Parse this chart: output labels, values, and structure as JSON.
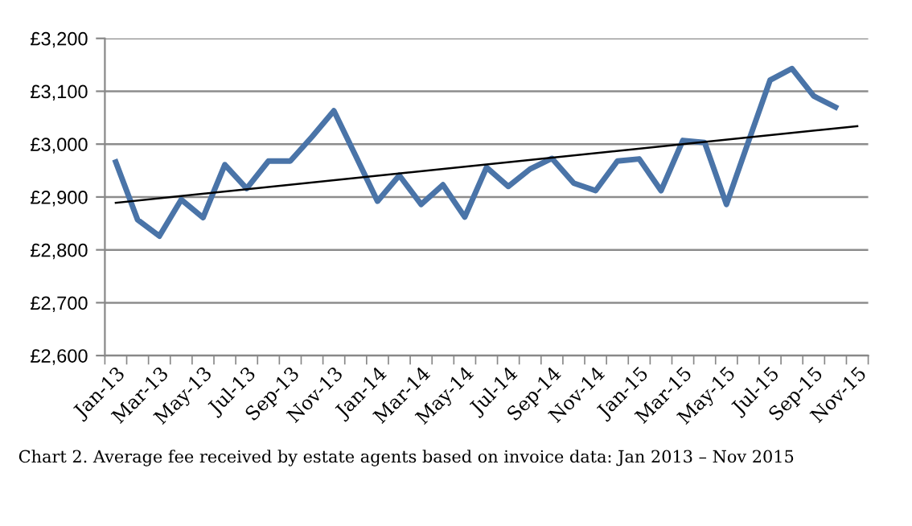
{
  "chart_data": {
    "type": "line",
    "categories": [
      "Jan-13",
      null,
      "Mar-13",
      null,
      "May-13",
      null,
      "Jul-13",
      null,
      "Sep-13",
      null,
      "Nov-13",
      null,
      "Jan-14",
      null,
      "Mar-14",
      null,
      "May-14",
      null,
      "Jul-14",
      null,
      "Sep-14",
      null,
      "Nov-14",
      null,
      "Jan-15",
      null,
      "Mar-15",
      null,
      "May-15",
      null,
      "Jul-15",
      null,
      "Sep-15",
      null,
      "Nov-15"
    ],
    "series": [
      {
        "color": "#4a74a8",
        "values": [
          2966,
          2857,
          2826,
          2895,
          2861,
          2961,
          2916,
          2968,
          2968,
          3014,
          3063,
          2978,
          2892,
          2941,
          2886,
          2923,
          2862,
          2956,
          2920,
          2953,
          2973,
          2926,
          2912,
          2968,
          2972,
          2912,
          3007,
          3003,
          2886,
          3004,
          3121,
          3143,
          3091,
          3070,
          null
        ]
      },
      {
        "color": "#000000",
        "values": [
          2889,
          null,
          null,
          null,
          null,
          null,
          null,
          null,
          null,
          null,
          null,
          null,
          null,
          null,
          null,
          null,
          null,
          null,
          null,
          null,
          null,
          null,
          null,
          null,
          null,
          null,
          null,
          null,
          null,
          null,
          null,
          null,
          null,
          null,
          3034
        ]
      }
    ],
    "ylim": [
      2600,
      3200
    ],
    "yticks": [
      {
        "value": 2600,
        "label": "£2,600"
      },
      {
        "value": 2700,
        "label": "£2,700"
      },
      {
        "value": 2800,
        "label": "£2,800"
      },
      {
        "value": 2900,
        "label": "£2,900"
      },
      {
        "value": 3000,
        "label": "£3,000"
      },
      {
        "value": 3100,
        "label": "£3,100"
      },
      {
        "value": 3200,
        "label": "£3,200"
      }
    ],
    "grid": "y",
    "marker": "none",
    "line_style": "solid",
    "annotations": [
      "Chart 2. Average fee received by estate agents based on invoice data: Jan 2013 – Nov 2015"
    ]
  }
}
